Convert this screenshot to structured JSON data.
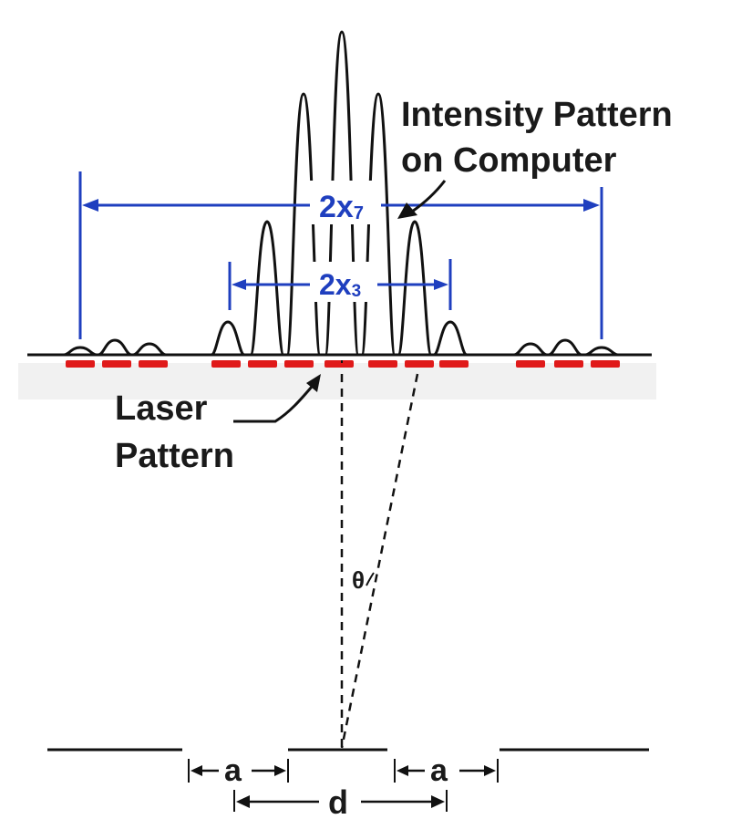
{
  "labels": {
    "intensity_line1": "Intensity Pattern",
    "intensity_line2": "on Computer",
    "laser_line1": "Laser",
    "laser_line2": "Pattern",
    "theta": "θ",
    "slit_width_left": "a",
    "slit_width_right": "a",
    "slit_separation": "d"
  },
  "measurements": {
    "outer": {
      "base": "2x",
      "sub": "7"
    },
    "inner": {
      "base": "2x",
      "sub": "3"
    }
  },
  "colors": {
    "measure_blue": "#1f3fbf",
    "laser_red": "#e01a1a",
    "ink": "#111111",
    "label_bg": "#ffffff"
  }
}
